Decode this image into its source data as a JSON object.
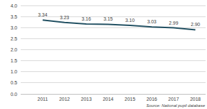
{
  "chart_data": {
    "type": "line",
    "categories": [
      "2011",
      "2012",
      "2013",
      "2014",
      "2015",
      "2016",
      "2017",
      "2018"
    ],
    "values": [
      3.34,
      3.23,
      3.16,
      3.15,
      3.1,
      3.03,
      2.99,
      2.9
    ],
    "value_labels": [
      "3.34",
      "3.23",
      "3.16",
      "3.15",
      "3.10",
      "3.03",
      "2.99",
      "2.90"
    ],
    "color": "#1f4e60",
    "ylim": [
      0,
      4
    ],
    "yticks": [
      {
        "value": 0,
        "label": "0.0"
      },
      0.5,
      {
        "value": 1,
        "label": "1.0"
      },
      1.5,
      {
        "value": 2,
        "label": "2.0"
      },
      2.5,
      {
        "value": 3,
        "label": "3.0"
      },
      3.5,
      {
        "value": 4,
        "label": "4.0"
      }
    ],
    "grid": true,
    "data_labels": true,
    "annotations": [
      "Source: National pupil database"
    ]
  }
}
